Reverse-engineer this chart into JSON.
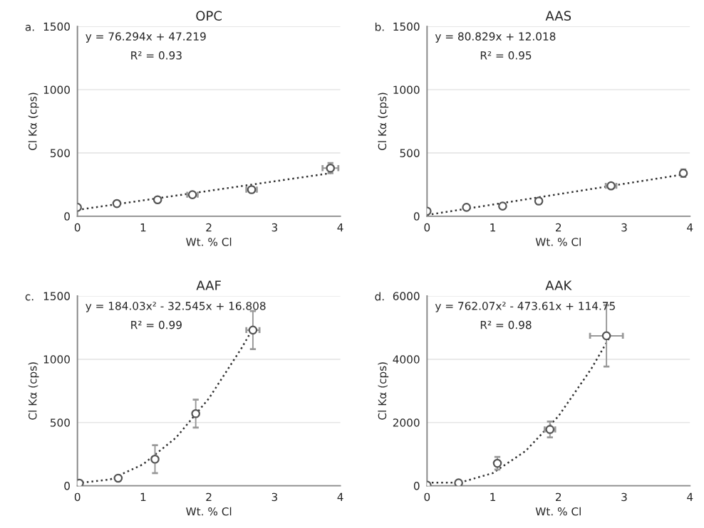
{
  "chart_data": [
    {
      "type": "scatter",
      "title": "OPC",
      "xlabel": "Wt. % Cl",
      "ylabel": "Cl Kα (cps)",
      "xlim": [
        0,
        4
      ],
      "xticks": [
        0,
        1,
        2,
        3,
        4
      ],
      "ylim": [
        0,
        1500
      ],
      "yticks": [
        0,
        500,
        1000,
        1500
      ],
      "grid": "y",
      "annotations": [
        "a.",
        "y = 76.294x + 47.219",
        "R² = 0.93"
      ],
      "series": [
        {
          "type": "scatter",
          "marker": "circle",
          "color": "#555555",
          "x": [
            0,
            0.6,
            1.22,
            1.75,
            2.65,
            3.85
          ],
          "values": [
            70,
            100,
            130,
            170,
            210,
            380
          ],
          "errors": [
            null,
            null,
            null,
            null,
            20,
            40
          ],
          "xerrors": [
            null,
            null,
            null,
            0.08,
            0.08,
            0.12
          ]
        },
        {
          "type": "line",
          "line_style": "dotted",
          "color": "#333333",
          "x": [
            0,
            3.85
          ],
          "values": [
            50,
            340
          ]
        }
      ]
    },
    {
      "type": "scatter",
      "title": "AAS",
      "xlabel": "Wt. % Cl",
      "ylabel": "Cl Kα (cps)",
      "xlim": [
        0,
        4
      ],
      "xticks": [
        0,
        1,
        2,
        3,
        4
      ],
      "ylim": [
        0,
        1500
      ],
      "yticks": [
        0,
        500,
        1000,
        1500
      ],
      "grid": "y",
      "annotations": [
        "b.",
        "y = 80.829x + 12.018",
        "R² = 0.95"
      ],
      "series": [
        {
          "type": "scatter",
          "marker": "circle",
          "color": "#555555",
          "x": [
            0,
            0.6,
            1.15,
            1.7,
            2.8,
            3.9
          ],
          "values": [
            40,
            70,
            80,
            120,
            240,
            340
          ],
          "errors": [
            null,
            null,
            null,
            20,
            20,
            30
          ],
          "xerrors": [
            null,
            null,
            null,
            null,
            0.08,
            null
          ]
        },
        {
          "type": "line",
          "line_style": "dotted",
          "color": "#333333",
          "x": [
            0,
            3.9
          ],
          "values": [
            10,
            330
          ]
        }
      ]
    },
    {
      "type": "scatter",
      "title": "AAF",
      "xlabel": "Wt. % Cl",
      "ylabel": "Cl Kα (cps)",
      "xlim": [
        0,
        4
      ],
      "xticks": [
        0,
        1,
        2,
        3,
        4
      ],
      "ylim": [
        0,
        1500
      ],
      "yticks": [
        0,
        500,
        1000,
        1500
      ],
      "grid": "y",
      "annotations": [
        "c.",
        "y = 184.03x² - 32.545x + 16.808",
        "R² = 0.99"
      ],
      "series": [
        {
          "type": "scatter",
          "marker": "circle",
          "color": "#555555",
          "x": [
            0.03,
            0.62,
            1.18,
            1.8,
            2.67
          ],
          "values": [
            20,
            60,
            210,
            570,
            1230
          ],
          "errors": [
            null,
            null,
            110,
            110,
            150
          ],
          "xerrors": [
            null,
            null,
            null,
            null,
            0.1
          ]
        },
        {
          "type": "line",
          "line_style": "dotted",
          "color": "#333333",
          "x": [
            0,
            0.5,
            1,
            1.5,
            2,
            2.5,
            2.7
          ],
          "values": [
            20,
            50,
            170,
            380,
            690,
            1090,
            1270
          ]
        }
      ]
    },
    {
      "type": "scatter",
      "title": "AAK",
      "xlabel": "Wt. % Cl",
      "ylabel": "Cl Kα (cps)",
      "xlim": [
        0,
        4
      ],
      "xticks": [
        0,
        1,
        2,
        3,
        4
      ],
      "ylim": [
        0,
        6000
      ],
      "yticks": [
        0,
        2000,
        4000,
        6000
      ],
      "grid": "y",
      "annotations": [
        "d.",
        "y = 762.07x² - 473.61x + 114.75",
        "R² = 0.98"
      ],
      "series": [
        {
          "type": "scatter",
          "marker": "circle",
          "color": "#555555",
          "x": [
            0,
            0.48,
            1.07,
            1.87,
            2.73
          ],
          "values": [
            20,
            90,
            710,
            1780,
            4740
          ],
          "errors": [
            null,
            null,
            200,
            250,
            970
          ],
          "xerrors": [
            null,
            null,
            null,
            0.08,
            0.25
          ]
        },
        {
          "type": "line",
          "line_style": "dotted",
          "color": "#333333",
          "x": [
            0,
            0.5,
            1,
            1.5,
            2,
            2.5,
            2.78
          ],
          "values": [
            100,
            100,
            400,
            1100,
            2200,
            3700,
            4700
          ]
        }
      ]
    }
  ]
}
